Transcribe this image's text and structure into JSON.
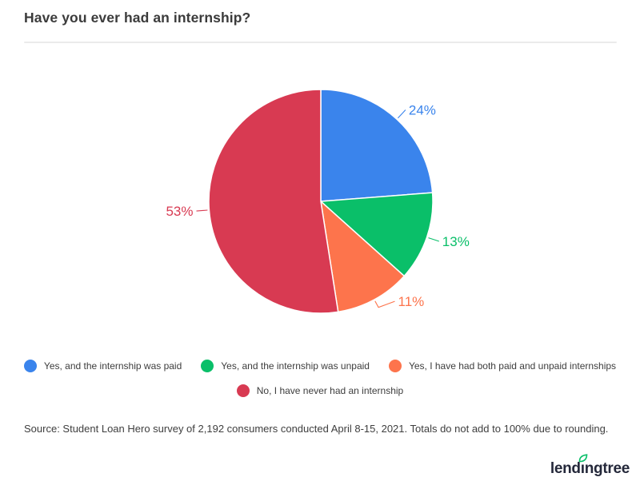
{
  "title": "Have you ever had an internship?",
  "chart_data": {
    "type": "pie",
    "title": "Have you ever had an internship?",
    "labels": [
      "Yes, and the internship was paid",
      "Yes, and the internship was unpaid",
      "Yes, I have had both paid and unpaid internships",
      "No, I have never had an internship"
    ],
    "values": [
      24,
      13,
      11,
      53
    ],
    "value_labels": [
      "24%",
      "13%",
      "11%",
      "53%"
    ],
    "colors": [
      "#3a84ec",
      "#0abf69",
      "#fd744c",
      "#d83a52"
    ],
    "start_angle": "top",
    "direction": "clockwise",
    "legend_position": "bottom"
  },
  "source": "Source: Student Loan Hero survey of 2,192 consumers conducted April 8-15, 2021. Totals do not add to 100% due to rounding.",
  "logo": {
    "text": "lendingtree",
    "leaf_color": "#0abf69"
  }
}
